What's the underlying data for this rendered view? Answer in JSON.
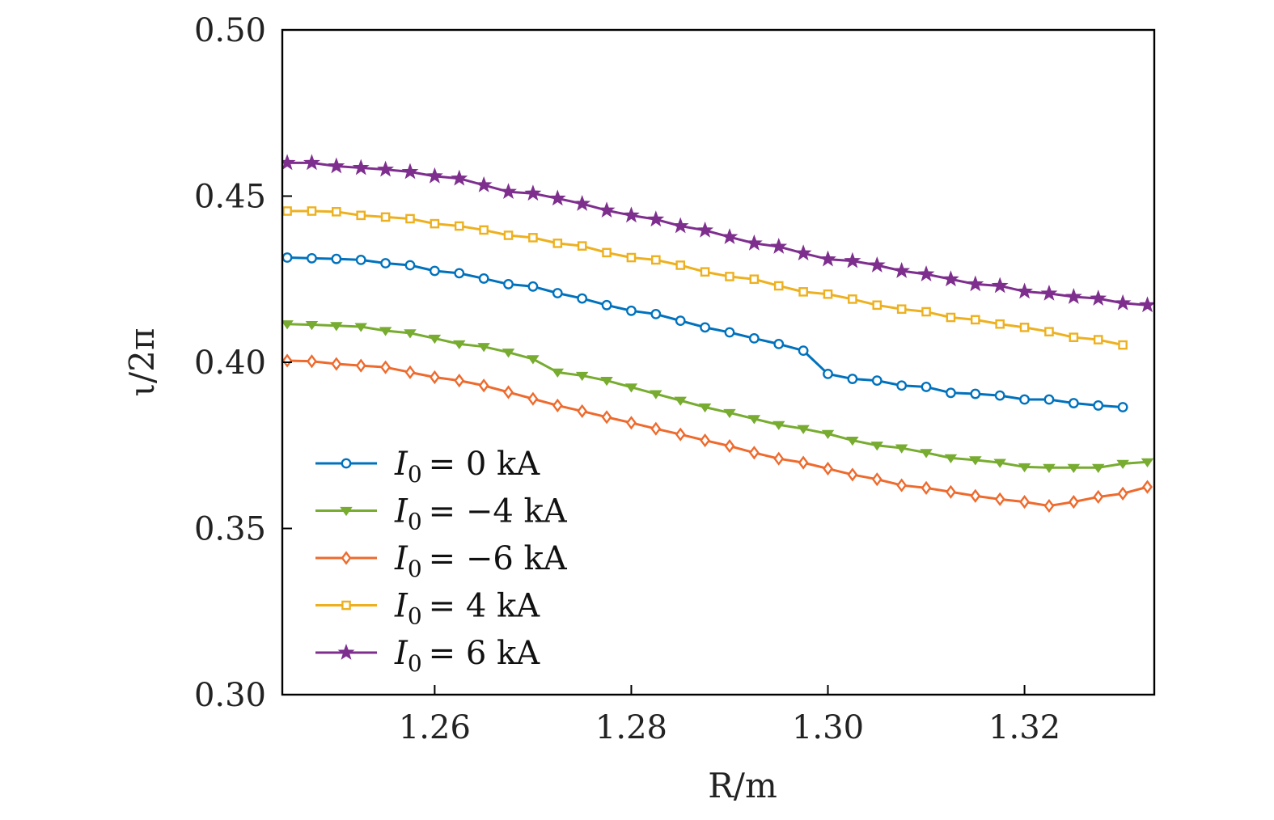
{
  "chart_data": {
    "type": "line",
    "title": "",
    "xlabel": "R/m",
    "ylabel": "ι/2π",
    "xlim": [
      1.2445,
      1.3332
    ],
    "ylim": [
      0.3,
      0.5
    ],
    "xticks": [
      1.26,
      1.28,
      1.3,
      1.32
    ],
    "xtick_labels": [
      "1.26",
      "1.28",
      "1.30",
      "1.32"
    ],
    "yticks": [
      0.3,
      0.35,
      0.4,
      0.45,
      0.5
    ],
    "ytick_labels": [
      "0.30",
      "0.35",
      "0.40",
      "0.45",
      "0.50"
    ],
    "grid": false,
    "legend_position": "bottom-left",
    "x": [
      1.245,
      1.2475,
      1.25,
      1.2525,
      1.255,
      1.2575,
      1.26,
      1.2625,
      1.265,
      1.2675,
      1.27,
      1.2725,
      1.275,
      1.2775,
      1.28,
      1.2825,
      1.285,
      1.2875,
      1.29,
      1.2925,
      1.295,
      1.2975,
      1.3,
      1.3025,
      1.305,
      1.3075,
      1.31,
      1.3125,
      1.315,
      1.3175,
      1.32,
      1.3225,
      1.325,
      1.3275,
      1.33,
      1.3325
    ],
    "series": [
      {
        "name": "I0 = 0 kA",
        "legend_label": "= 0 kA",
        "color": "#0072BD",
        "marker": "circle",
        "values": [
          0.4315,
          0.4313,
          0.4311,
          0.4308,
          0.4298,
          0.4292,
          0.4275,
          0.4268,
          0.4252,
          0.4235,
          0.4228,
          0.4208,
          0.4192,
          0.4172,
          0.4155,
          0.4145,
          0.4125,
          0.4105,
          0.409,
          0.4072,
          0.4055,
          0.4035,
          0.3965,
          0.395,
          0.3945,
          0.393,
          0.3926,
          0.3908,
          0.3905,
          0.39,
          0.3888,
          0.3888,
          0.3877,
          0.387,
          0.3865,
          null
        ]
      },
      {
        "name": "I0 = −4 kA",
        "legend_label": "= −4 kA",
        "color": "#77AC30",
        "marker": "triangle-down",
        "values": [
          0.4115,
          0.4113,
          0.411,
          0.4107,
          0.4095,
          0.4088,
          0.4072,
          0.4055,
          0.4047,
          0.403,
          0.401,
          0.397,
          0.396,
          0.3945,
          0.3925,
          0.3905,
          0.3885,
          0.3865,
          0.3848,
          0.383,
          0.3812,
          0.38,
          0.3785,
          0.3765,
          0.375,
          0.3742,
          0.3728,
          0.3712,
          0.3706,
          0.3698,
          0.3685,
          0.3683,
          0.3683,
          0.3683,
          0.3695,
          0.37
        ]
      },
      {
        "name": "I0 = −6 kA",
        "legend_label": "= −6 kA",
        "color": "#EE6A2D",
        "marker": "diamond",
        "values": [
          0.4005,
          0.4003,
          0.3995,
          0.399,
          0.3985,
          0.397,
          0.3955,
          0.3945,
          0.393,
          0.391,
          0.389,
          0.387,
          0.3853,
          0.3835,
          0.3818,
          0.38,
          0.3783,
          0.3765,
          0.3748,
          0.3728,
          0.371,
          0.3698,
          0.368,
          0.3662,
          0.3648,
          0.363,
          0.3622,
          0.361,
          0.3598,
          0.3588,
          0.358,
          0.3568,
          0.358,
          0.3595,
          0.3605,
          0.3625
        ]
      },
      {
        "name": "I0 = 4 kA",
        "legend_label": "= 4 kA",
        "color": "#EDB120",
        "marker": "square",
        "values": [
          0.4455,
          0.4455,
          0.4453,
          0.4442,
          0.4437,
          0.4432,
          0.4417,
          0.441,
          0.4398,
          0.4382,
          0.4375,
          0.4358,
          0.435,
          0.433,
          0.4315,
          0.4308,
          0.4292,
          0.4272,
          0.4258,
          0.425,
          0.423,
          0.4212,
          0.4205,
          0.419,
          0.4172,
          0.416,
          0.4152,
          0.4135,
          0.4128,
          0.4115,
          0.4105,
          0.4092,
          0.4075,
          0.4068,
          0.4052,
          null
        ]
      },
      {
        "name": "I0 = 6 kA",
        "legend_label": "= 6 kA",
        "color": "#7E2F8E",
        "marker": "star",
        "values": [
          0.46,
          0.46,
          0.459,
          0.4585,
          0.458,
          0.4573,
          0.456,
          0.4553,
          0.4533,
          0.4513,
          0.4508,
          0.4493,
          0.4477,
          0.4457,
          0.4442,
          0.443,
          0.441,
          0.4397,
          0.4377,
          0.4358,
          0.4348,
          0.4328,
          0.431,
          0.4305,
          0.4292,
          0.4275,
          0.4265,
          0.425,
          0.4235,
          0.423,
          0.4213,
          0.4207,
          0.4197,
          0.4192,
          0.4178,
          0.4172
        ]
      }
    ]
  }
}
